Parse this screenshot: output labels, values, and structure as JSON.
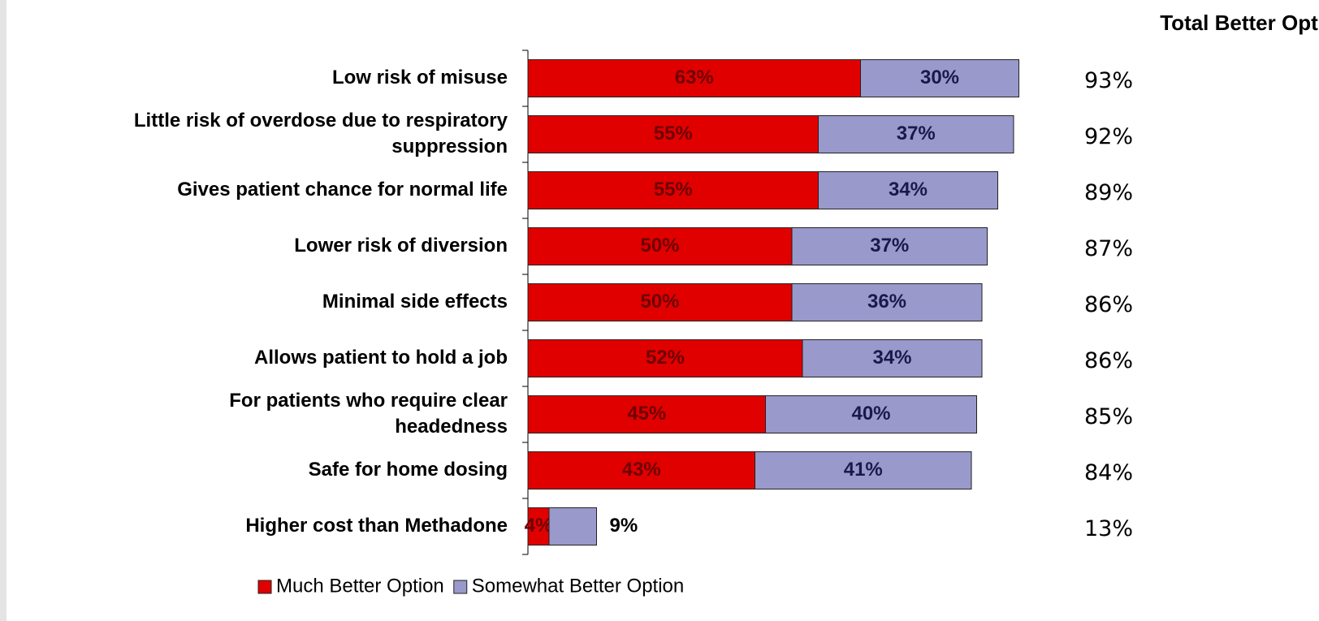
{
  "chart_data": {
    "type": "stacked_barh",
    "total_header": "Total Better Option",
    "categories": [
      [
        "Low risk of misuse"
      ],
      [
        "Little risk of overdose due to respiratory",
        "suppression"
      ],
      [
        "Gives patient chance for normal life"
      ],
      [
        "Lower risk of diversion"
      ],
      [
        "Minimal side effects"
      ],
      [
        "Allows patient to hold a job"
      ],
      [
        "For patients who require clear",
        "headedness"
      ],
      [
        "Safe for home dosing"
      ],
      [
        "Higher cost than Methadone"
      ]
    ],
    "series": [
      {
        "name": "Much Better Option",
        "color": "#e00000",
        "label_color": "#6e0000",
        "values": [
          63,
          55,
          55,
          50,
          50,
          52,
          45,
          43,
          4
        ],
        "value_labels": [
          "63%",
          "55%",
          "55%",
          "50%",
          "50%",
          "52%",
          "45%",
          "43%",
          "4%"
        ]
      },
      {
        "name": "Somewhat Better Option",
        "color": "#9999cc",
        "label_color": "#1a1a4a",
        "values": [
          30,
          37,
          34,
          37,
          36,
          34,
          40,
          41,
          9
        ],
        "value_labels": [
          "30%",
          "37%",
          "34%",
          "37%",
          "36%",
          "34%",
          "40%",
          "41%",
          "9%"
        ]
      }
    ],
    "totals": [
      "93%",
      "92%",
      "89%",
      "87%",
      "86%",
      "86%",
      "85%",
      "84%",
      "13%"
    ],
    "xlim": [
      0,
      100
    ]
  }
}
